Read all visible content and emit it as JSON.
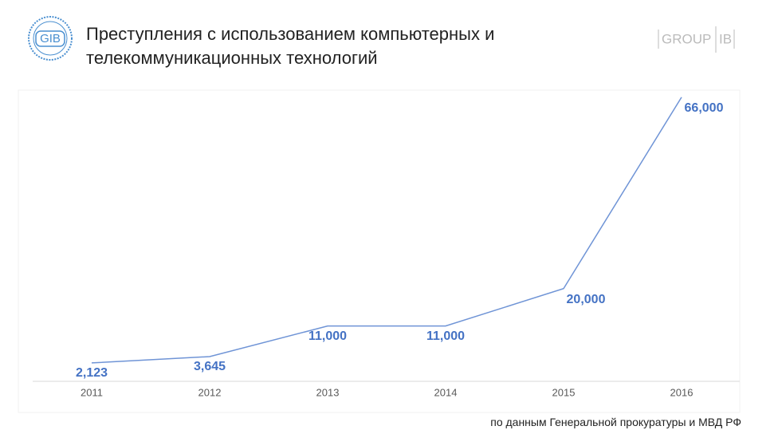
{
  "header": {
    "logo": "GIB",
    "brand": [
      "GROUP",
      "IB"
    ]
  },
  "chart_data": {
    "type": "line",
    "title": "Преступления с использованием компьютерных и телекоммуникационных технологий",
    "source": "по данным Генеральной прокуратуры и МВД РФ",
    "categories": [
      "2011",
      "2012",
      "2013",
      "2014",
      "2015",
      "2016"
    ],
    "values": [
      2123,
      3645,
      11000,
      11000,
      20000,
      66000
    ],
    "value_labels": [
      "2,123",
      "3,645",
      "11,000",
      "11,000",
      "20,000",
      "66,000"
    ],
    "color": "#6f94d6",
    "ylim": [
      0,
      70000
    ]
  }
}
